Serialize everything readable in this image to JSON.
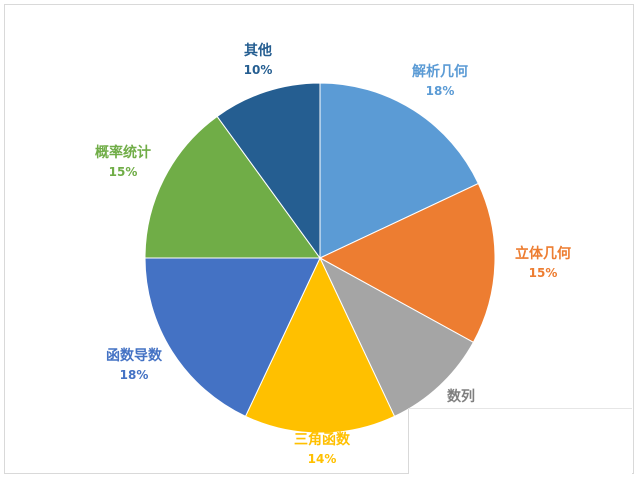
{
  "chart_data": {
    "type": "pie",
    "title": "",
    "slices": [
      {
        "label": "解析几何",
        "value": 18,
        "pct_text": "18%",
        "color": "#5b9bd5",
        "show_pct": true
      },
      {
        "label": "立体几何",
        "value": 15,
        "pct_text": "15%",
        "color": "#ed7d31",
        "show_pct": true
      },
      {
        "label": "数列",
        "value": 10,
        "pct_text": "",
        "color": "#a5a5a5",
        "show_pct": false
      },
      {
        "label": "三角函数",
        "value": 14,
        "pct_text": "14%",
        "color": "#ffc000",
        "show_pct": true
      },
      {
        "label": "函数导数",
        "value": 18,
        "pct_text": "18%",
        "color": "#4472c4",
        "show_pct": true
      },
      {
        "label": "概率统计",
        "value": 15,
        "pct_text": "15%",
        "color": "#70ad47",
        "show_pct": true
      },
      {
        "label": "其他",
        "value": 10,
        "pct_text": "10%",
        "color": "#255e91",
        "show_pct": true
      }
    ],
    "legend": "none"
  }
}
